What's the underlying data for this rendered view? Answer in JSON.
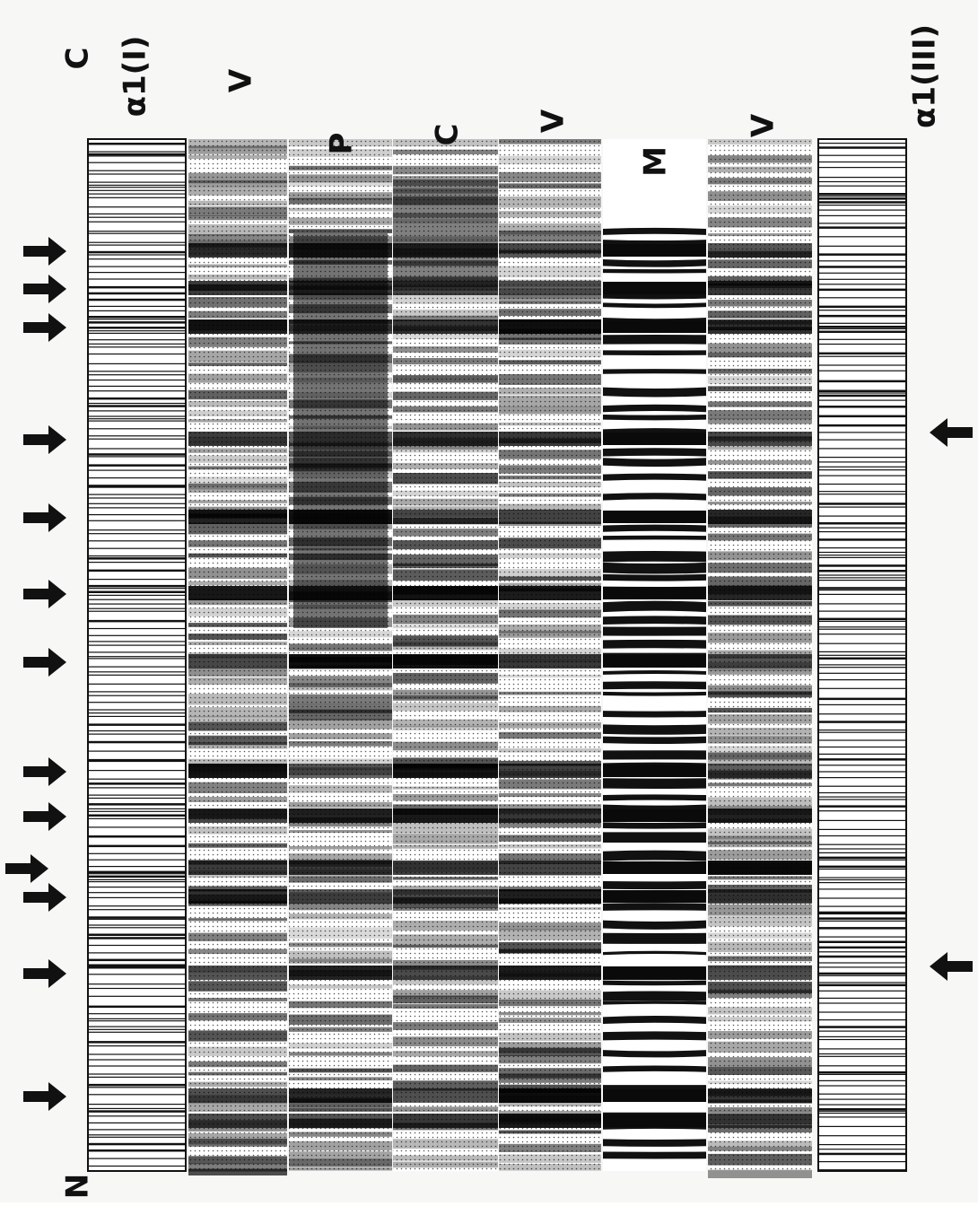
{
  "figure": {
    "top_labels": [
      "C",
      "α1(I)",
      "V",
      "P",
      "C",
      "V",
      "M",
      "V",
      "α1(III)"
    ],
    "bottom_label": "N"
  }
}
